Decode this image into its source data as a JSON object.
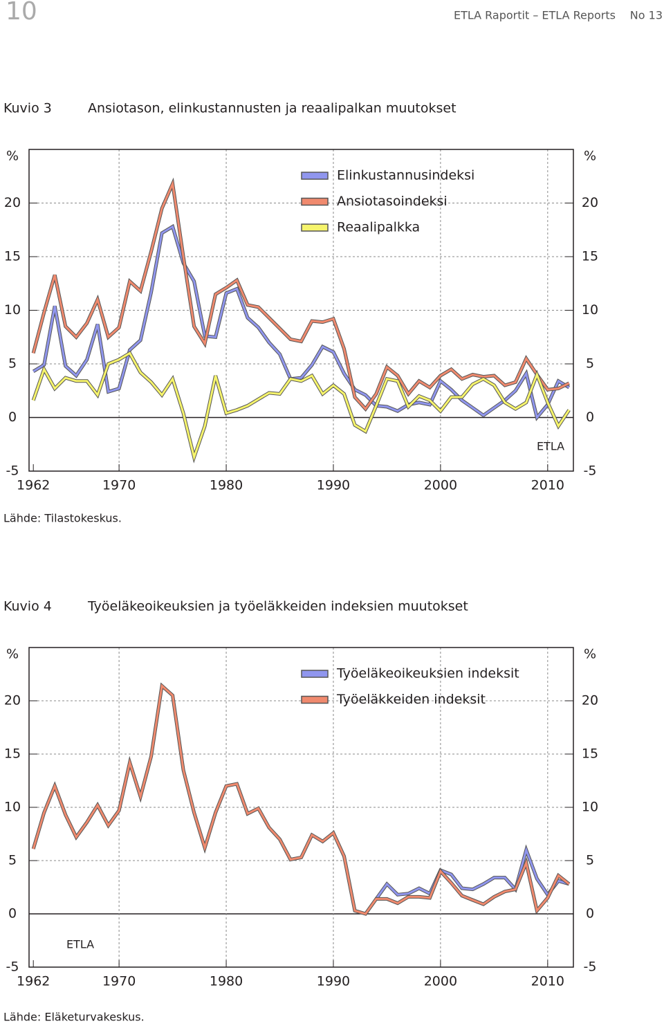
{
  "header": {
    "page_number": "10",
    "series": "ETLA Raportit – ETLA Reports",
    "issue": "No 13"
  },
  "figures": [
    {
      "label": "Kuvio 3",
      "title": "Ansiotason, elinkustannusten ja reaalipalkan muutokset",
      "source": "Lähde: Tilastokeskus."
    },
    {
      "label": "Kuvio 4",
      "title": "Työeläkeoikeuksien ja työeläkkeiden indeksien muutokset",
      "source": "Lähde: Eläketurvakeskus."
    }
  ],
  "chart_data": [
    {
      "type": "line",
      "ylabel": "%",
      "annotation": "ETLA",
      "x": [
        1962,
        1963,
        1964,
        1965,
        1966,
        1967,
        1968,
        1969,
        1970,
        1971,
        1972,
        1973,
        1974,
        1975,
        1976,
        1977,
        1978,
        1979,
        1980,
        1981,
        1982,
        1983,
        1984,
        1985,
        1986,
        1987,
        1988,
        1989,
        1990,
        1991,
        1992,
        1993,
        1994,
        1995,
        1996,
        1997,
        1998,
        1999,
        2000,
        2001,
        2002,
        2003,
        2004,
        2005,
        2006,
        2007,
        2008,
        2009,
        2010,
        2011,
        2012
      ],
      "xlim": [
        1961.6,
        2012.4
      ],
      "xticks": [
        1962,
        1970,
        1980,
        1990,
        2000,
        2010
      ],
      "ylim": [
        -5,
        25
      ],
      "yticks": [
        -5,
        0,
        5,
        10,
        15,
        20
      ],
      "grid": true,
      "series": [
        {
          "name": "Elinkustannusindeksi",
          "color": "#9096ee",
          "values": [
            4.3,
            4.9,
            10.4,
            4.8,
            3.9,
            5.4,
            8.7,
            2.4,
            2.7,
            6.3,
            7.2,
            11.7,
            17.2,
            17.8,
            14.4,
            12.7,
            7.6,
            7.5,
            11.6,
            12.0,
            9.3,
            8.4,
            7.0,
            5.9,
            3.6,
            3.7,
            4.9,
            6.6,
            6.1,
            4.1,
            2.6,
            2.1,
            1.1,
            1.0,
            0.6,
            1.2,
            1.4,
            1.2,
            3.4,
            2.6,
            1.6,
            0.9,
            0.2,
            0.9,
            1.6,
            2.5,
            4.1,
            0.0,
            1.2,
            3.4,
            2.8
          ]
        },
        {
          "name": "Ansiotasoindeksi",
          "color": "#f08a6e",
          "values": [
            6.0,
            9.8,
            13.3,
            8.5,
            7.5,
            8.8,
            11.0,
            7.5,
            8.4,
            12.7,
            11.8,
            15.5,
            19.5,
            21.8,
            15.0,
            8.5,
            6.9,
            11.5,
            12.1,
            12.8,
            10.5,
            10.3,
            9.3,
            8.3,
            7.3,
            7.1,
            9.0,
            8.9,
            9.2,
            6.4,
            1.9,
            0.8,
            2.2,
            4.7,
            3.9,
            2.2,
            3.4,
            2.8,
            3.9,
            4.5,
            3.6,
            4.0,
            3.8,
            3.9,
            3.0,
            3.3,
            5.5,
            4.0,
            2.6,
            2.7,
            3.2
          ]
        },
        {
          "name": "Reaalipalkka",
          "color": "#f6f46c",
          "values": [
            1.6,
            4.5,
            2.7,
            3.7,
            3.4,
            3.4,
            2.1,
            5.0,
            5.4,
            6.0,
            4.2,
            3.3,
            2.1,
            3.6,
            0.4,
            -3.7,
            -0.8,
            3.9,
            0.4,
            0.7,
            1.1,
            1.7,
            2.3,
            2.2,
            3.6,
            3.4,
            3.9,
            2.2,
            3.0,
            2.2,
            -0.7,
            -1.3,
            1.1,
            3.6,
            3.4,
            1.0,
            2.0,
            1.6,
            0.6,
            1.9,
            1.9,
            3.1,
            3.6,
            3.0,
            1.4,
            0.8,
            1.4,
            4.0,
            1.4,
            -0.8,
            0.7
          ]
        }
      ]
    },
    {
      "type": "line",
      "ylabel": "%",
      "annotation": "ETLA",
      "x": [
        1962,
        1963,
        1964,
        1965,
        1966,
        1967,
        1968,
        1969,
        1970,
        1971,
        1972,
        1973,
        1974,
        1975,
        1976,
        1977,
        1978,
        1979,
        1980,
        1981,
        1982,
        1983,
        1984,
        1985,
        1986,
        1987,
        1988,
        1989,
        1990,
        1991,
        1992,
        1993,
        1994,
        1995,
        1996,
        1997,
        1998,
        1999,
        2000,
        2001,
        2002,
        2003,
        2004,
        2005,
        2006,
        2007,
        2008,
        2009,
        2010,
        2011,
        2012
      ],
      "xlim": [
        1961.6,
        2012.4
      ],
      "xticks": [
        1962,
        1970,
        1980,
        1990,
        2000,
        2010
      ],
      "ylim": [
        -5,
        25
      ],
      "yticks": [
        -5,
        0,
        5,
        10,
        15,
        20
      ],
      "grid": true,
      "series": [
        {
          "name": "Työeläkeoikeuksien indeksit",
          "color": "#9096ee",
          "values": [
            null,
            null,
            null,
            null,
            null,
            null,
            null,
            null,
            null,
            null,
            null,
            null,
            null,
            null,
            null,
            null,
            null,
            null,
            null,
            null,
            null,
            null,
            null,
            null,
            null,
            null,
            null,
            null,
            null,
            null,
            null,
            null,
            1.4,
            2.8,
            1.8,
            1.9,
            2.4,
            1.9,
            4.1,
            3.7,
            2.4,
            2.3,
            2.8,
            3.4,
            3.4,
            2.3,
            6.0,
            3.3,
            1.8,
            3.1,
            2.8
          ]
        },
        {
          "name": "Työeläkkeiden indeksit",
          "color": "#f08a6e",
          "values": [
            6.1,
            9.5,
            12.0,
            9.3,
            7.2,
            8.6,
            10.2,
            8.3,
            9.7,
            14.2,
            11.0,
            14.8,
            21.4,
            20.5,
            13.5,
            9.5,
            6.2,
            9.5,
            12.0,
            12.2,
            9.4,
            9.9,
            8.1,
            7.0,
            5.1,
            5.3,
            7.4,
            6.8,
            7.6,
            5.4,
            0.3,
            0.0,
            1.4,
            1.4,
            1.0,
            1.6,
            1.6,
            1.5,
            4.0,
            2.9,
            1.7,
            1.3,
            0.9,
            1.6,
            2.1,
            2.3,
            4.8,
            0.3,
            1.5,
            3.6,
            2.8
          ]
        }
      ]
    }
  ]
}
